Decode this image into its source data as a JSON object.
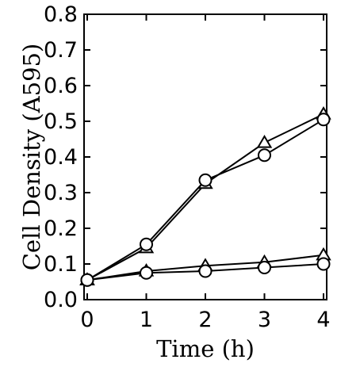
{
  "chart_data": {
    "type": "line",
    "xlabel": "Time (h)",
    "ylabel": "Cell Density (A595)",
    "xlim": [
      0,
      4
    ],
    "ylim": [
      0,
      0.8
    ],
    "x_ticks": [
      "0",
      "1",
      "2",
      "3",
      "4"
    ],
    "y_ticks": [
      "0.0",
      "0.1",
      "0.2",
      "0.3",
      "0.4",
      "0.5",
      "0.6",
      "0.7",
      "0.8"
    ],
    "grid": false,
    "series": [
      {
        "marker": "triangle",
        "x": [
          0,
          1,
          2,
          3,
          4
        ],
        "y": [
          0.055,
          0.145,
          0.325,
          0.44,
          0.52
        ]
      },
      {
        "marker": "circle",
        "x": [
          0,
          1,
          2,
          3,
          4
        ],
        "y": [
          0.055,
          0.155,
          0.335,
          0.405,
          0.505
        ]
      },
      {
        "marker": "triangle",
        "x": [
          0,
          1,
          2,
          3,
          4
        ],
        "y": [
          0.055,
          0.08,
          0.095,
          0.105,
          0.125
        ]
      },
      {
        "marker": "circle",
        "x": [
          0,
          1,
          2,
          3,
          4
        ],
        "y": [
          0.055,
          0.075,
          0.08,
          0.09,
          0.1
        ]
      }
    ]
  }
}
